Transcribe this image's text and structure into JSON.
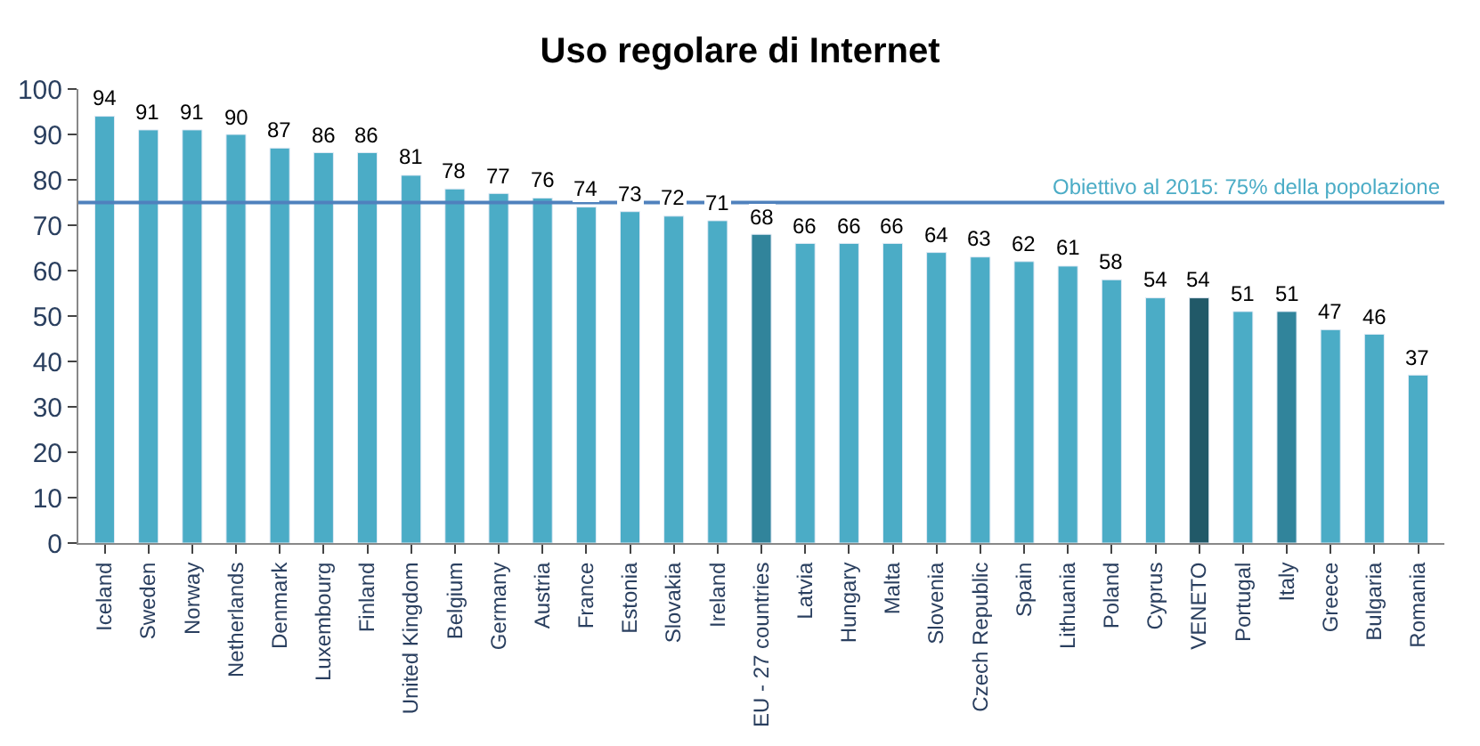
{
  "chart_data": {
    "type": "bar",
    "title": "Uso regolare di Internet",
    "categories": [
      "Iceland",
      "Sweden",
      "Norway",
      "Netherlands",
      "Denmark",
      "Luxembourg",
      "Finland",
      "United Kingdom",
      "Belgium",
      "Germany",
      "Austria",
      "France",
      "Estonia",
      "Slovakia",
      "Ireland",
      "EU - 27 countries",
      "Latvia",
      "Hungary",
      "Malta",
      "Slovenia",
      "Czech Republic",
      "Spain",
      "Lithuania",
      "Poland",
      "Cyprus",
      "VENETO",
      "Portugal",
      "Italy",
      "Greece",
      "Bulgaria",
      "Romania"
    ],
    "values": [
      94,
      91,
      91,
      90,
      87,
      86,
      86,
      81,
      78,
      77,
      76,
      74,
      73,
      72,
      71,
      68,
      66,
      66,
      66,
      64,
      63,
      62,
      61,
      58,
      54,
      54,
      51,
      51,
      47,
      46,
      37
    ],
    "colors": [
      "#4bacc6",
      "#4bacc6",
      "#4bacc6",
      "#4bacc6",
      "#4bacc6",
      "#4bacc6",
      "#4bacc6",
      "#4bacc6",
      "#4bacc6",
      "#4bacc6",
      "#4bacc6",
      "#4bacc6",
      "#4bacc6",
      "#4bacc6",
      "#4bacc6",
      "#31849b",
      "#4bacc6",
      "#4bacc6",
      "#4bacc6",
      "#4bacc6",
      "#4bacc6",
      "#4bacc6",
      "#4bacc6",
      "#4bacc6",
      "#4bacc6",
      "#215968",
      "#4bacc6",
      "#31849b",
      "#4bacc6",
      "#4bacc6",
      "#4bacc6"
    ],
    "ylim": [
      0,
      100
    ],
    "yticks": [
      0,
      10,
      20,
      30,
      40,
      50,
      60,
      70,
      80,
      90,
      100
    ],
    "ref_lines": [
      {
        "axis": "y",
        "value": 75,
        "label": "Obiettivo al 2015: 75% della popolazione",
        "color": "#4f81bd"
      }
    ],
    "data_labels": true
  }
}
